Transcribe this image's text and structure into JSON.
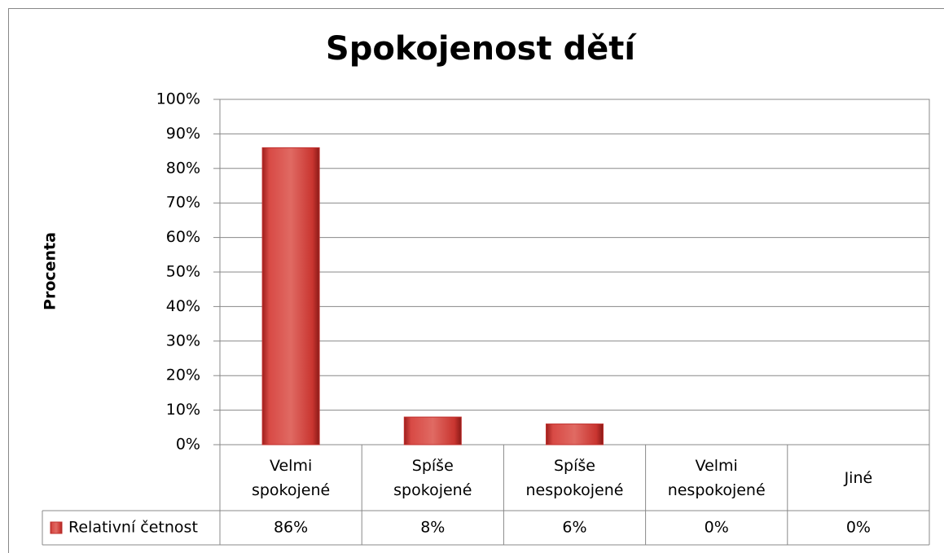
{
  "chart_data": {
    "type": "bar",
    "title": "Spokojenost dětí",
    "y_label": "Procenta",
    "categories": [
      "Velmi spokojené",
      "Spíše spokojené",
      "Spíše nespokojené",
      "Velmi nespokojené",
      "Jiné"
    ],
    "series": [
      {
        "name": "Relativní četnost",
        "color": "#c0302e",
        "values": [
          86,
          8,
          6,
          0,
          0
        ],
        "value_labels": [
          "86%",
          "8%",
          "6%",
          "0%",
          "0%"
        ]
      }
    ],
    "ylim": [
      0,
      100
    ],
    "yticks": [
      {
        "value": 0,
        "label": "0%"
      },
      {
        "value": 10,
        "label": "10%"
      },
      {
        "value": 20,
        "label": "20%"
      },
      {
        "value": 30,
        "label": "30%"
      },
      {
        "value": 40,
        "label": "40%"
      },
      {
        "value": 50,
        "label": "50%"
      },
      {
        "value": 60,
        "label": "60%"
      },
      {
        "value": 70,
        "label": "70%"
      },
      {
        "value": 80,
        "label": "80%"
      },
      {
        "value": 90,
        "label": "90%"
      },
      {
        "value": 100,
        "label": "100%"
      }
    ],
    "grid": true,
    "legend": "table"
  }
}
